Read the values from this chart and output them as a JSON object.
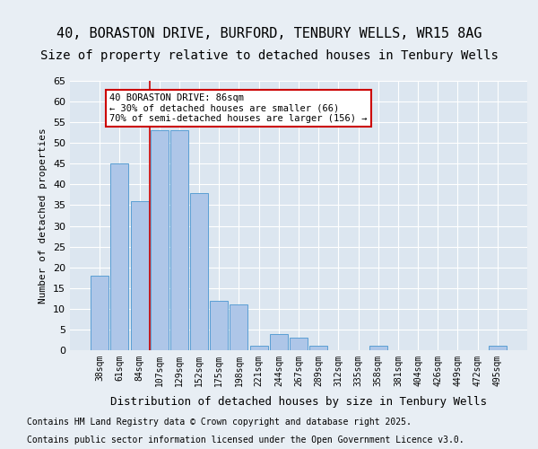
{
  "title1": "40, BORASTON DRIVE, BURFORD, TENBURY WELLS, WR15 8AG",
  "title2": "Size of property relative to detached houses in Tenbury Wells",
  "xlabel": "Distribution of detached houses by size in Tenbury Wells",
  "ylabel": "Number of detached properties",
  "categories": [
    "38sqm",
    "61sqm",
    "84sqm",
    "107sqm",
    "129sqm",
    "152sqm",
    "175sqm",
    "198sqm",
    "221sqm",
    "244sqm",
    "267sqm",
    "289sqm",
    "312sqm",
    "335sqm",
    "358sqm",
    "381sqm",
    "404sqm",
    "426sqm",
    "449sqm",
    "472sqm",
    "495sqm"
  ],
  "values": [
    18,
    45,
    36,
    53,
    53,
    38,
    12,
    11,
    1,
    4,
    3,
    1,
    0,
    0,
    1,
    0,
    0,
    0,
    0,
    0,
    1
  ],
  "bar_color": "#aec6e8",
  "bar_edge_color": "#5a9fd4",
  "vline_x": 2.5,
  "vline_color": "#cc0000",
  "annotation_text": "40 BORASTON DRIVE: 86sqm\n← 30% of detached houses are smaller (66)\n70% of semi-detached houses are larger (156) →",
  "annotation_box_color": "#cc0000",
  "ylim": [
    0,
    65
  ],
  "yticks": [
    0,
    5,
    10,
    15,
    20,
    25,
    30,
    35,
    40,
    45,
    50,
    55,
    60,
    65
  ],
  "bg_color": "#e8eef4",
  "plot_bg_color": "#dce6f0",
  "footer1": "Contains HM Land Registry data © Crown copyright and database right 2025.",
  "footer2": "Contains public sector information licensed under the Open Government Licence v3.0.",
  "title_fontsize": 11,
  "subtitle_fontsize": 10
}
